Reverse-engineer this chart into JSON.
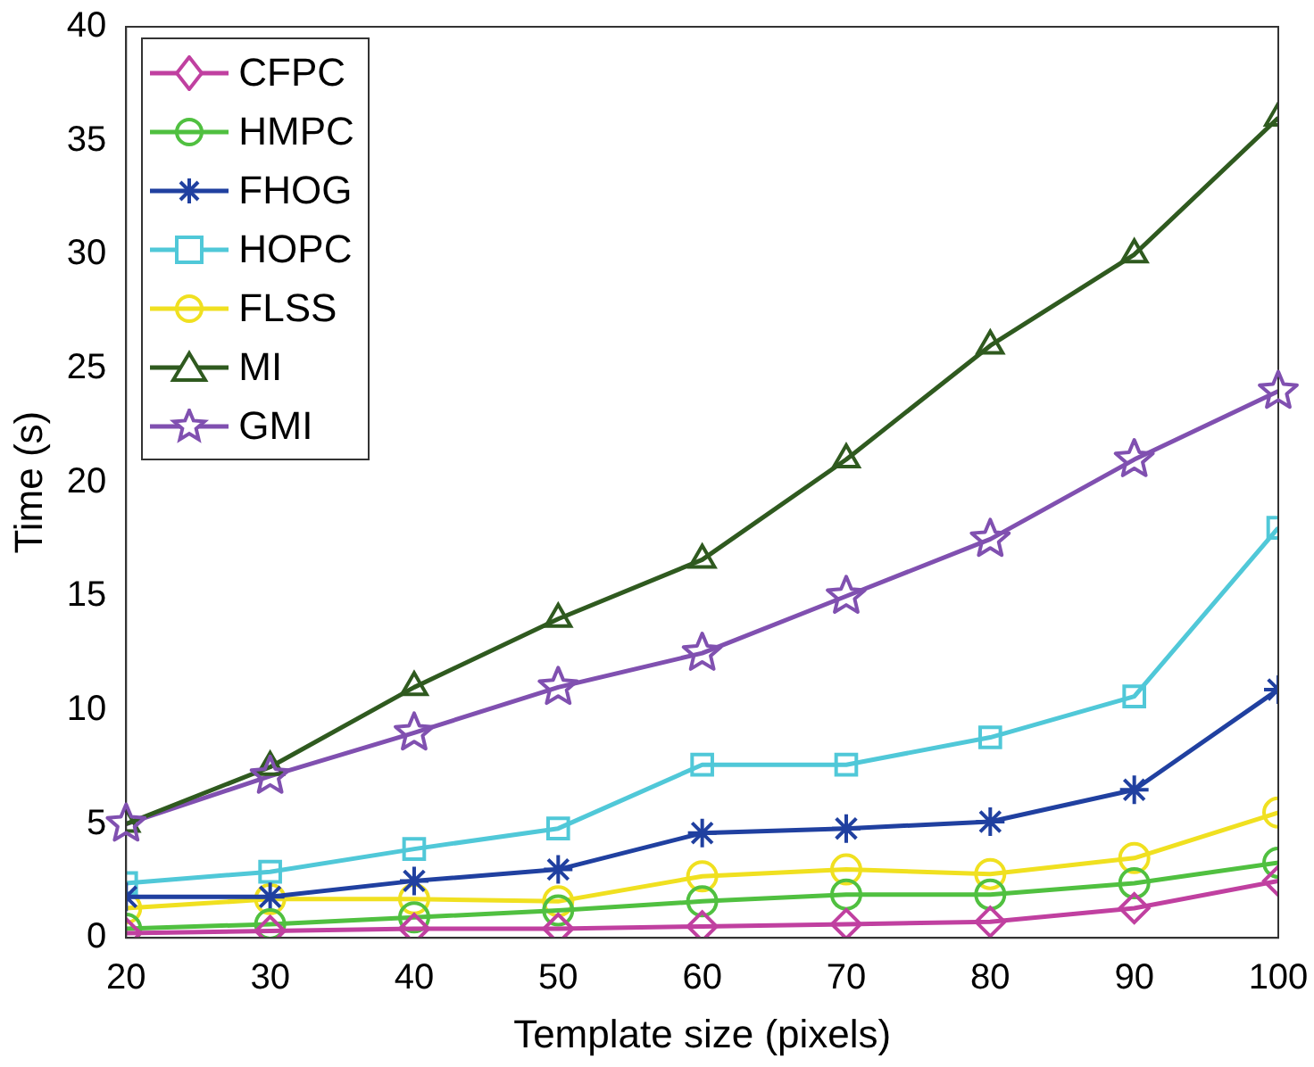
{
  "chart_data": {
    "type": "line",
    "xlabel": "Template size (pixels)",
    "ylabel": "Time (s)",
    "x": [
      20,
      30,
      40,
      50,
      60,
      70,
      80,
      90,
      100
    ],
    "xlim": [
      20,
      100
    ],
    "xticks": [
      20,
      30,
      40,
      50,
      60,
      70,
      80,
      90,
      100
    ],
    "ylim": [
      0,
      40
    ],
    "yticks": [
      0,
      5,
      10,
      15,
      20,
      25,
      30,
      35,
      40
    ],
    "grid": false,
    "legend": "top left",
    "line_style": "solid",
    "series": [
      {
        "name": "CFPC",
        "color": "#c040a0",
        "marker": "diamond",
        "values": [
          0.2,
          0.3,
          0.4,
          0.4,
          0.5,
          0.6,
          0.7,
          1.3,
          2.5
        ]
      },
      {
        "name": "HMPC",
        "color": "#50c040",
        "marker": "circle",
        "values": [
          0.4,
          0.6,
          0.9,
          1.2,
          1.6,
          1.9,
          1.9,
          2.4,
          3.3
        ]
      },
      {
        "name": "FHOG",
        "color": "#2040a0",
        "marker": "cross",
        "values": [
          1.8,
          1.8,
          2.5,
          3.0,
          4.6,
          4.8,
          5.1,
          6.5,
          10.9
        ]
      },
      {
        "name": "HOPC",
        "color": "#50c8d8",
        "marker": "square",
        "values": [
          2.4,
          2.9,
          3.9,
          4.8,
          7.6,
          7.6,
          8.8,
          10.6,
          18
        ]
      },
      {
        "name": "FLSS",
        "color": "#f0e020",
        "marker": "circle",
        "values": [
          1.3,
          1.7,
          1.7,
          1.6,
          2.7,
          3.0,
          2.8,
          3.5,
          5.5
        ]
      },
      {
        "name": "MI",
        "color": "#2f5a1f",
        "marker": "triangle",
        "values": [
          5,
          7.5,
          11,
          14,
          16.6,
          21,
          26,
          30,
          36
        ]
      },
      {
        "name": "GMI",
        "color": "#8050b0",
        "marker": "star",
        "values": [
          5,
          7.1,
          9,
          11,
          12.5,
          15,
          17.5,
          21,
          24
        ]
      }
    ]
  }
}
